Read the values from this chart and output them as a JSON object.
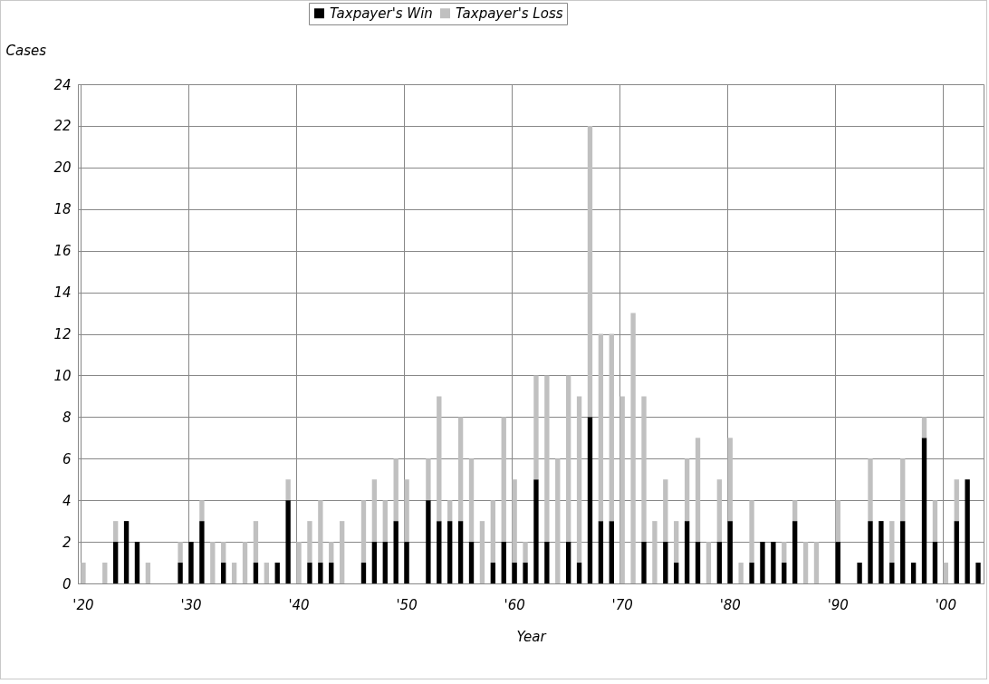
{
  "chart_data": {
    "type": "bar",
    "stacked": true,
    "xlabel": "Year",
    "ylabel": "Cases",
    "categories": [
      "'20",
      null,
      null,
      null,
      null,
      null,
      null,
      null,
      null,
      null,
      "'30",
      null,
      null,
      null,
      null,
      null,
      null,
      null,
      null,
      null,
      "'40",
      null,
      null,
      null,
      null,
      null,
      null,
      null,
      null,
      null,
      "'50",
      null,
      null,
      null,
      null,
      null,
      null,
      null,
      null,
      null,
      "'60",
      null,
      null,
      null,
      null,
      null,
      null,
      null,
      null,
      null,
      "'70",
      null,
      null,
      null,
      null,
      null,
      null,
      null,
      null,
      null,
      "'80",
      null,
      null,
      null,
      null,
      null,
      null,
      null,
      null,
      null,
      "'90",
      null,
      null,
      null,
      null,
      null,
      null,
      null,
      null,
      null,
      "'00",
      null,
      null,
      null
    ],
    "series": [
      {
        "name": "Taxpayer's Win",
        "color": "#000000",
        "values": [
          0,
          0,
          0,
          2,
          3,
          2,
          0,
          0,
          0,
          1,
          2,
          3,
          0,
          1,
          0,
          0,
          1,
          0,
          1,
          4,
          0,
          1,
          1,
          1,
          0,
          0,
          1,
          2,
          2,
          3,
          2,
          0,
          4,
          3,
          3,
          3,
          2,
          0,
          1,
          2,
          1,
          1,
          5,
          2,
          0,
          2,
          1,
          8,
          3,
          3,
          0,
          0,
          2,
          0,
          2,
          1,
          3,
          2,
          0,
          2,
          3,
          0,
          1,
          2,
          2,
          1,
          3,
          0,
          0,
          0,
          2,
          0,
          1,
          3,
          3,
          1,
          3,
          1,
          7,
          2,
          0,
          3,
          5,
          1
        ]
      },
      {
        "name": "Taxpayer's Loss",
        "color": "#c0c0c0",
        "values": [
          1,
          0,
          1,
          1,
          0,
          0,
          1,
          0,
          0,
          1,
          0,
          1,
          2,
          1,
          1,
          2,
          2,
          1,
          0,
          1,
          2,
          2,
          3,
          1,
          3,
          0,
          3,
          3,
          2,
          3,
          3,
          0,
          2,
          6,
          1,
          5,
          4,
          3,
          3,
          6,
          4,
          1,
          5,
          8,
          6,
          8,
          8,
          14,
          9,
          9,
          9,
          13,
          7,
          3,
          3,
          2,
          3,
          5,
          2,
          3,
          4,
          1,
          3,
          0,
          0,
          1,
          1,
          2,
          2,
          0,
          2,
          0,
          0,
          3,
          0,
          2,
          3,
          0,
          1,
          2,
          1,
          2,
          0,
          0
        ]
      }
    ],
    "ylim": [
      0,
      24
    ],
    "yticks": [
      0,
      2,
      4,
      6,
      8,
      10,
      12,
      14,
      16,
      18,
      20,
      22,
      24
    ],
    "grid": true,
    "legend": "top"
  }
}
